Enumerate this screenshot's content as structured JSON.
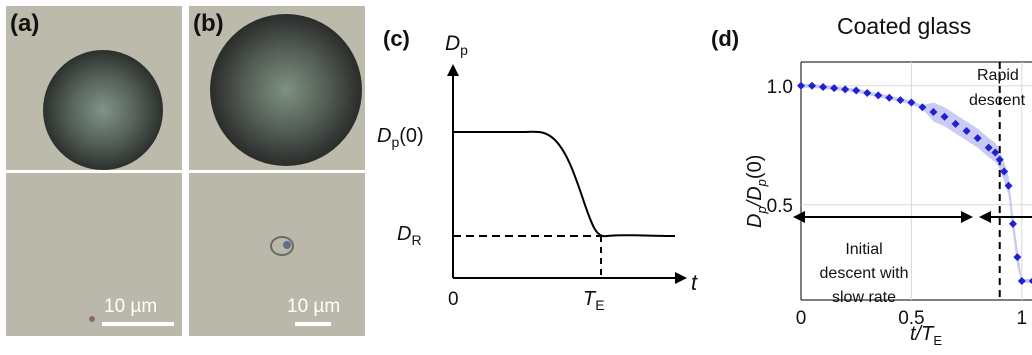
{
  "panels": {
    "a": {
      "label": "(a)",
      "scale_text": "10 µm"
    },
    "b": {
      "label": "(b)",
      "scale_text": "10 µm"
    },
    "c": {
      "label": "(c)",
      "y_axis_label": "D",
      "y_axis_sub": "p",
      "x_axis_label": "t",
      "dp0_label": "D",
      "dp0_sub": "p",
      "dp0_suffix": "(0)",
      "dr_label": "D",
      "dr_sub": "R",
      "origin_label": "0",
      "te_label": "T",
      "te_sub": "E"
    },
    "d": {
      "label": "(d)",
      "title": "Coated glass",
      "annotation_rapid_1": "Rapid",
      "annotation_rapid_2": "descent",
      "annotation_initial_1": "Initial",
      "annotation_initial_2": "descent with",
      "annotation_initial_3": "slow rate"
    }
  },
  "colors": {
    "series": "#1f1fd6",
    "band": "#b8b8f2",
    "micro_bg": "#b9b7a7"
  },
  "chart_data": {
    "type": "scatter",
    "title": "Coated glass",
    "xlabel": "t/T_E",
    "ylabel": "D_p/D_p(0)",
    "xlim": [
      0,
      1.25
    ],
    "ylim": [
      0.1,
      1.1
    ],
    "x_ticks": [
      "0",
      "0.5",
      "1"
    ],
    "y_ticks": [
      "1.0",
      "0.5"
    ],
    "grid": true,
    "vline_x": 0.9,
    "series": [
      {
        "x": [
          0.0,
          0.05,
          0.1,
          0.15,
          0.2,
          0.25,
          0.3,
          0.35,
          0.4,
          0.45,
          0.5,
          0.55,
          0.6,
          0.65,
          0.7,
          0.75,
          0.8,
          0.85,
          0.88,
          0.9,
          0.92,
          0.94,
          0.96,
          0.98,
          1.0,
          1.05,
          1.1,
          1.15,
          1.2,
          1.25
        ],
        "y": [
          1.0,
          1.0,
          0.995,
          0.99,
          0.985,
          0.98,
          0.97,
          0.96,
          0.95,
          0.94,
          0.93,
          0.91,
          0.89,
          0.87,
          0.84,
          0.81,
          0.78,
          0.74,
          0.72,
          0.69,
          0.64,
          0.58,
          0.42,
          0.28,
          0.18,
          0.18,
          0.18,
          0.18,
          0.18,
          0.18
        ]
      }
    ]
  }
}
